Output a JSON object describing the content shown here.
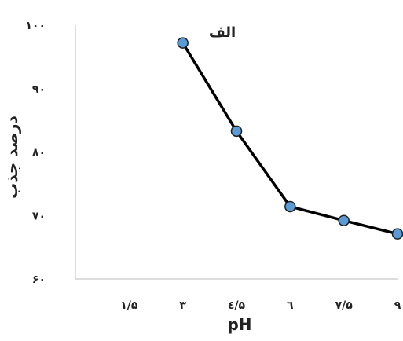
{
  "chart_data": {
    "type": "line",
    "title": "الف",
    "xlabel": "pH",
    "ylabel": "درصد جذب",
    "x_ticks": [
      {
        "value": 1.5,
        "label": "۱/۵"
      },
      {
        "value": 3,
        "label": "۳"
      },
      {
        "value": 4.5,
        "label": "٤/۵"
      },
      {
        "value": 6,
        "label": "٦"
      },
      {
        "value": 7.5,
        "label": "۷/۵"
      },
      {
        "value": 9,
        "label": "۹"
      }
    ],
    "y_ticks": [
      {
        "value": 60,
        "label": "۶۰"
      },
      {
        "value": 70,
        "label": "۷۰"
      },
      {
        "value": 80,
        "label": "۸۰"
      },
      {
        "value": 90,
        "label": "۹۰"
      },
      {
        "value": 100,
        "label": "۱۰۰"
      }
    ],
    "xlim": [
      0,
      9
    ],
    "ylim": [
      60,
      100
    ],
    "grid": false,
    "series": [
      {
        "x": [
          3,
          4.5,
          6,
          7.5,
          9
        ],
        "values": [
          97.2,
          83.3,
          71.4,
          69.2,
          67.1
        ]
      }
    ],
    "colors": {
      "line": "#000000",
      "marker_fill": "#5b9bd5",
      "marker_stroke": "#1f1f1f",
      "axis": "#d0d0d0"
    }
  }
}
